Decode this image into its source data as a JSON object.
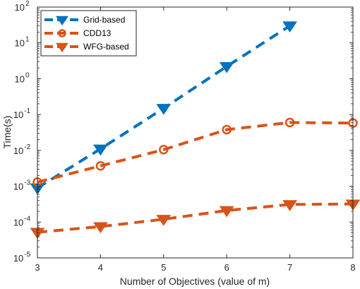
{
  "chart_data": {
    "type": "line",
    "title": "",
    "xlabel": "Number of Objectives (value of m)",
    "ylabel": "Time(s)",
    "xlim": [
      3,
      8
    ],
    "ylim": [
      1e-05,
      100
    ],
    "yscale": "log",
    "grid": false,
    "legend_position": "top-left",
    "x_ticks": [
      "3",
      "4",
      "5",
      "6",
      "7",
      "8"
    ],
    "y_ticks": [
      {
        "value": 1e-05,
        "base": "10",
        "exp": "-5"
      },
      {
        "value": 0.0001,
        "base": "10",
        "exp": "-4"
      },
      {
        "value": 0.001,
        "base": "10",
        "exp": "-3"
      },
      {
        "value": 0.01,
        "base": "10",
        "exp": "-2"
      },
      {
        "value": 0.1,
        "base": "10",
        "exp": "-1"
      },
      {
        "value": 1,
        "base": "10",
        "exp": "0"
      },
      {
        "value": 10,
        "base": "10",
        "exp": "1"
      },
      {
        "value": 100,
        "base": "10",
        "exp": "2"
      }
    ],
    "series": [
      {
        "name": "Grid-based",
        "color": "#0072BD",
        "marker": "triangle-down",
        "x": [
          3,
          4,
          5,
          6,
          7
        ],
        "y": [
          0.0009,
          0.011,
          0.15,
          2.2,
          30
        ]
      },
      {
        "name": "CDD13",
        "color": "#D95319",
        "marker": "circle",
        "x": [
          3,
          4,
          5,
          6,
          7,
          8
        ],
        "y": [
          0.0013,
          0.0037,
          0.0105,
          0.038,
          0.06,
          0.058
        ]
      },
      {
        "name": "WFG-based",
        "color": "#D95319",
        "marker": "triangle-down",
        "x": [
          3,
          4,
          5,
          6,
          7,
          8
        ],
        "y": [
          5.2e-05,
          7.5e-05,
          0.00012,
          0.00021,
          0.00031,
          0.00032
        ]
      }
    ]
  }
}
